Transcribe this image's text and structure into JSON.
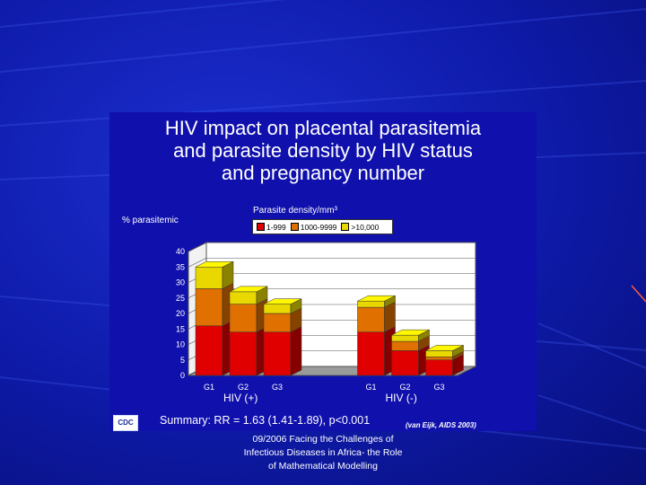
{
  "slide": {
    "title_lines": [
      "HIV impact on placental parasitemia",
      "and parasite density by HIV status",
      "and pregnancy number"
    ],
    "summary": "Summary: RR = 1.63 (1.41-1.89), p<0.001",
    "source": "(van Eijk, AIDS 2003)",
    "logo_text": "CDC",
    "footer_lines": [
      "09/2006 Facing the Challenges of",
      "Infectious Diseases in Africa- the Role",
      "of Mathematical Modelling"
    ]
  },
  "chart_data": {
    "type": "bar",
    "stacked": true,
    "three_d": true,
    "ylabel": "% parasitemic",
    "legend_title": "Parasite density/mm³",
    "legend_position": "top",
    "ylim": [
      0,
      40
    ],
    "yticks": [
      0,
      5,
      10,
      15,
      20,
      25,
      30,
      35,
      40
    ],
    "grid": true,
    "categories": [
      "G1",
      "G2",
      "G3",
      "G1",
      "G2",
      "G3"
    ],
    "groups": [
      {
        "label": "HIV (+)",
        "categories": [
          "G1",
          "G2",
          "G3"
        ]
      },
      {
        "label": "HIV (-)",
        "categories": [
          "G1",
          "G2",
          "G3"
        ]
      }
    ],
    "series": [
      {
        "name": "1-999",
        "color": "#e00000",
        "values": [
          16,
          14,
          14,
          14,
          8,
          5
        ]
      },
      {
        "name": "1000-9999",
        "color": "#e07000",
        "values": [
          12,
          9,
          6,
          8,
          3,
          1
        ]
      },
      {
        "name": ">10,000",
        "color": "#e8d800",
        "values": [
          7,
          4,
          3,
          2,
          2,
          2
        ]
      }
    ]
  }
}
